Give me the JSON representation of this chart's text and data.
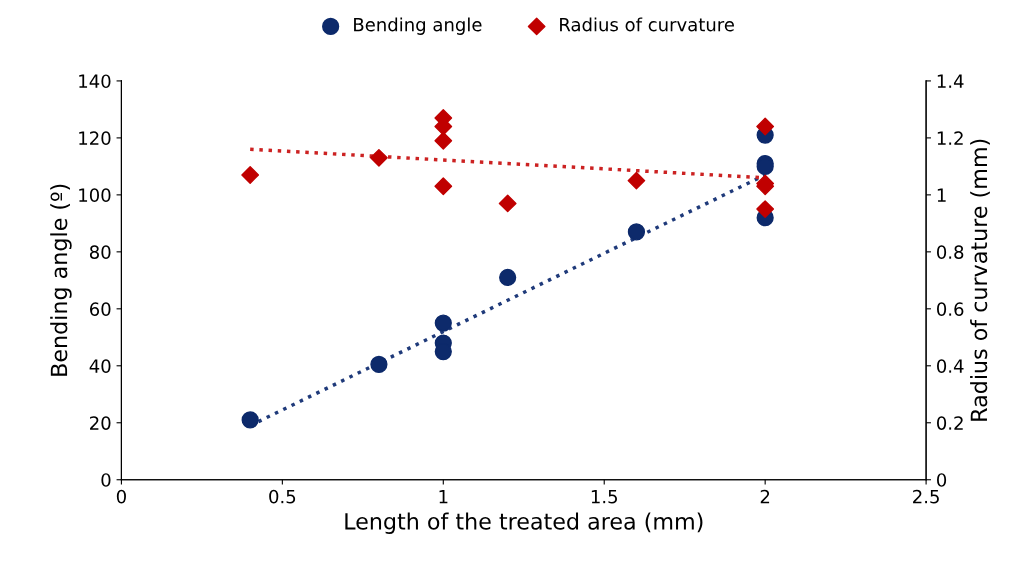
{
  "chart_data": {
    "type": "scatter",
    "xlabel": "Length of the treated area (mm)",
    "ylabel": "Bending angle (º)",
    "y2label": "Radius of curvature (mm)",
    "xlim": [
      0,
      2.5
    ],
    "xticks": [
      0,
      0.5,
      1,
      1.5,
      2,
      2.5
    ],
    "ylim": [
      0,
      140
    ],
    "yticks": [
      0,
      20,
      40,
      60,
      80,
      100,
      120,
      140
    ],
    "y2lim": [
      0,
      1.4
    ],
    "y2ticks": [
      0,
      0.2,
      0.4,
      0.6,
      0.8,
      1,
      1.2,
      1.4
    ],
    "grid": false,
    "legend": "top",
    "series": [
      {
        "name": "Bending angle",
        "marker": "circle",
        "color": "#0d2a6b",
        "x": [
          0.4,
          0.8,
          1,
          1,
          1,
          1.2,
          1.6,
          2,
          2,
          2,
          2
        ],
        "values": [
          21,
          40.5,
          55,
          48,
          45,
          71,
          87,
          121,
          111,
          110,
          92
        ]
      },
      {
        "name": "Radius of curvature",
        "marker": "diamond",
        "axis": "y2",
        "color": "#c00000",
        "x": [
          0.4,
          0.8,
          1,
          1,
          1,
          1,
          1.2,
          1.6,
          2,
          2,
          2,
          2
        ],
        "values": [
          1.07,
          1.13,
          1.27,
          1.24,
          1.19,
          1.03,
          0.97,
          1.05,
          1.24,
          1.04,
          1.03,
          0.95
        ]
      },
      {
        "type": "line",
        "line_style": "dotted",
        "marker": "none",
        "color": "#1f3a7a",
        "x": [
          0.4,
          2
        ],
        "values": [
          19,
          107
        ]
      },
      {
        "type": "line",
        "line_style": "dotted",
        "marker": "none",
        "axis": "y2",
        "color": "#cc2222",
        "x": [
          0.4,
          2
        ],
        "values": [
          1.16,
          1.06
        ]
      }
    ]
  }
}
